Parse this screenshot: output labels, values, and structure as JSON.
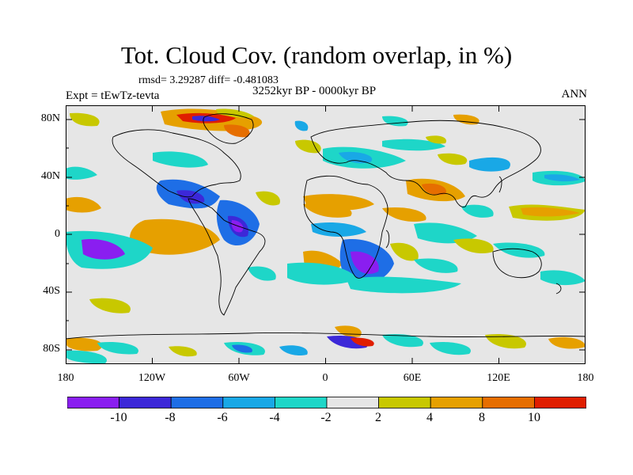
{
  "title": "Tot. Cloud Cov. (random overlap, in %)",
  "stats": "rmsd= 3.29287 diff= -0.481083",
  "period": "3252kyr BP - 0000kyr BP",
  "experiment": "Expt = tEwTz-tevta",
  "season": "ANN",
  "chart_data": {
    "type": "heatmap",
    "title": "Tot. Cloud Cov. (random overlap, in %)",
    "lat_ticks": [
      "80N",
      "40N",
      "0",
      "40S",
      "80S"
    ],
    "lon_ticks": [
      "180",
      "120W",
      "60W",
      "0",
      "60E",
      "120E",
      "180"
    ],
    "xlim": [
      -180,
      180
    ],
    "ylim": [
      -90,
      90
    ],
    "colorbar": {
      "levels": [
        -10,
        -8,
        -6,
        -4,
        -2,
        2,
        4,
        8,
        10
      ],
      "labels": [
        "-10",
        "-8",
        "-6",
        "-4",
        "-2",
        "2",
        "4",
        "8",
        "10"
      ],
      "colors": [
        "#8a1ef0",
        "#3c28d8",
        "#1e6ee6",
        "#19a8e6",
        "#1ed6c8",
        "#e6e6e6",
        "#c8c800",
        "#e6a000",
        "#e66e00",
        "#e01e00"
      ]
    }
  },
  "colors": {
    "neutral": "#e6e6e6",
    "violet": "#8a1ef0",
    "indigo": "#3c28d8",
    "blue": "#1e6ee6",
    "skyblue": "#19a8e6",
    "cyan": "#1ed6c8",
    "yellow": "#c8c800",
    "orange": "#e6a000",
    "darkorange": "#e66e00",
    "red": "#e01e00"
  }
}
